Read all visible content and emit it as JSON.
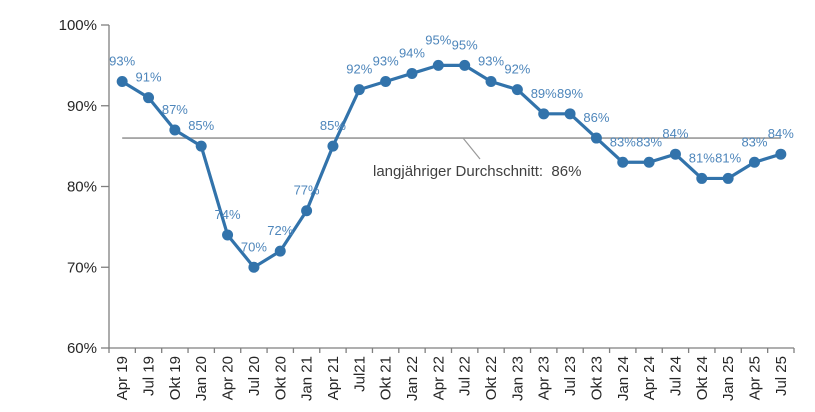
{
  "chart_data": {
    "type": "line",
    "title": "",
    "xlabel": "",
    "ylabel": "",
    "categories": [
      "Apr 19",
      "Jul 19",
      "Okt 19",
      "Jan 20",
      "Apr 20",
      "Jul 20",
      "Okt 20",
      "Jan 21",
      "Apr 21",
      "Jul21",
      "Okt 21",
      "Jan 22",
      "Apr 22",
      "Jul 22",
      "Okt 22",
      "Jan 23",
      "Apr 23",
      "Jul 23",
      "Okt 23",
      "Jan 24",
      "Apr 24",
      "Jul 24",
      "Okt 24",
      "Jan 25",
      "Apr 25",
      "Jul 25"
    ],
    "series": [
      {
        "name": "share-percent",
        "values": [
          93,
          91,
          87,
          85,
          74,
          70,
          72,
          77,
          85,
          92,
          93,
          94,
          95,
          95,
          93,
          92,
          89,
          89,
          86,
          83,
          83,
          84,
          81,
          81,
          83,
          84
        ],
        "data_labels": [
          "93%",
          "91%",
          "87%",
          "85%",
          "74%",
          "70%",
          "72%",
          "77%",
          "85%",
          "92%",
          "93%",
          "94%",
          "95%",
          "95%",
          "93%",
          "92%",
          "89%",
          "89%",
          "86%",
          "83%",
          "83%",
          "84%",
          "81%",
          "81%",
          "83%",
          "84%"
        ]
      }
    ],
    "ylim": [
      60,
      100
    ],
    "yticks": [
      100,
      90,
      80,
      70,
      60
    ],
    "ytick_labels": [
      "100%",
      "90%",
      "80%",
      "70%",
      "60%"
    ],
    "grid": false,
    "legend": false,
    "average_line": {
      "value": 86,
      "label": "langjähriger Durchschnitt:  86%",
      "color": "#9a9a9a"
    },
    "colors": {
      "line": "#3273AB",
      "marker": "#3273AB",
      "data_label": "#4E86BB",
      "axis": "#7f7f7f",
      "tick_text": "#262626",
      "annotation_text": "#404040"
    }
  }
}
